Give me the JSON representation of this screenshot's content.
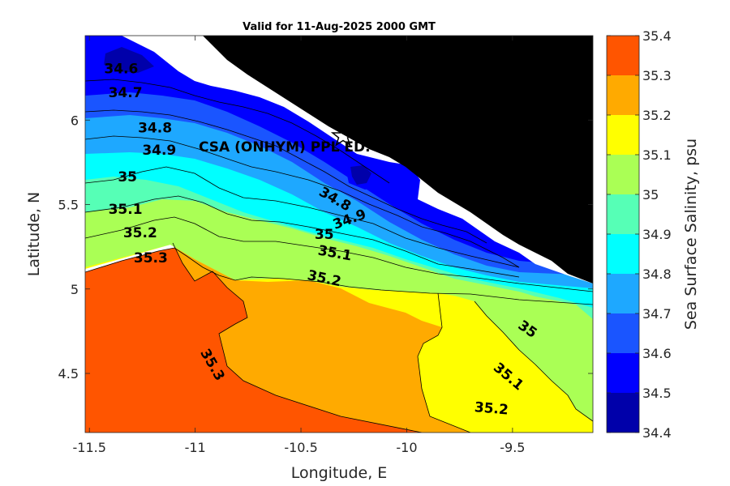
{
  "chart_data": {
    "type": "contour",
    "title": "Valid for 11-Aug-2025 2000 GMT",
    "xlabel": "Longitude, E",
    "ylabel": "Latitude, N",
    "xlim": [
      -11.52,
      -9.12
    ],
    "ylim": [
      4.15,
      6.5
    ],
    "xticks": [
      -11.5,
      -11,
      -10.5,
      -10,
      -9.5
    ],
    "xtick_labels": [
      "-11.5",
      "-11",
      "-10.5",
      "-10",
      "-9.5"
    ],
    "yticks": [
      4.5,
      5,
      5.5,
      6
    ],
    "ytick_labels": [
      "4.5",
      "5",
      "5.5",
      "6"
    ],
    "colorbar": {
      "label": "Sea Surface Salinity, psu",
      "levels": [
        34.4,
        34.5,
        34.6,
        34.7,
        34.8,
        34.9,
        35,
        35.1,
        35.2,
        35.3,
        35.4
      ],
      "tick_labels": [
        "34.4",
        "34.5",
        "34.6",
        "34.7",
        "34.8",
        "34.9",
        "35",
        "35.1",
        "35.2",
        "35.3",
        "35.4"
      ],
      "colors": [
        "#0000aa",
        "#0000ff",
        "#1a55ff",
        "#1ea8ff",
        "#00ffff",
        "#56ffb6",
        "#aaff55",
        "#ffff00",
        "#ffaa00",
        "#ff5500"
      ]
    },
    "land_color": "#000000",
    "contour_labels": [
      {
        "text": "34.6",
        "lon": -11.35,
        "lat": 6.3
      },
      {
        "text": "34.7",
        "lon": -11.33,
        "lat": 6.16
      },
      {
        "text": "34.8",
        "lon": -11.19,
        "lat": 5.95
      },
      {
        "text": "34.9",
        "lon": -11.17,
        "lat": 5.82
      },
      {
        "text": "35",
        "lon": -11.32,
        "lat": 5.66
      },
      {
        "text": "35.1",
        "lon": -11.33,
        "lat": 5.47
      },
      {
        "text": "35.2",
        "lon": -11.26,
        "lat": 5.33
      },
      {
        "text": "35.3",
        "lon": -11.21,
        "lat": 5.18
      },
      {
        "text": "34.8",
        "lon": -10.34,
        "lat": 5.53
      },
      {
        "text": "34.9",
        "lon": -10.27,
        "lat": 5.41
      },
      {
        "text": "35",
        "lon": -10.39,
        "lat": 5.32
      },
      {
        "text": "35.1",
        "lon": -10.34,
        "lat": 5.21
      },
      {
        "text": "35.2",
        "lon": -10.39,
        "lat": 5.06
      },
      {
        "text": "35.3",
        "lon": -10.92,
        "lat": 4.55
      },
      {
        "text": "35",
        "lon": -9.43,
        "lat": 4.76
      },
      {
        "text": "35.1",
        "lon": -9.52,
        "lat": 4.48
      },
      {
        "text": "35.2",
        "lon": -9.6,
        "lat": 4.29
      }
    ],
    "station": {
      "label": "CSA (ONHYM) PPL ED.",
      "lon": -10.28,
      "lat": 5.92
    }
  }
}
